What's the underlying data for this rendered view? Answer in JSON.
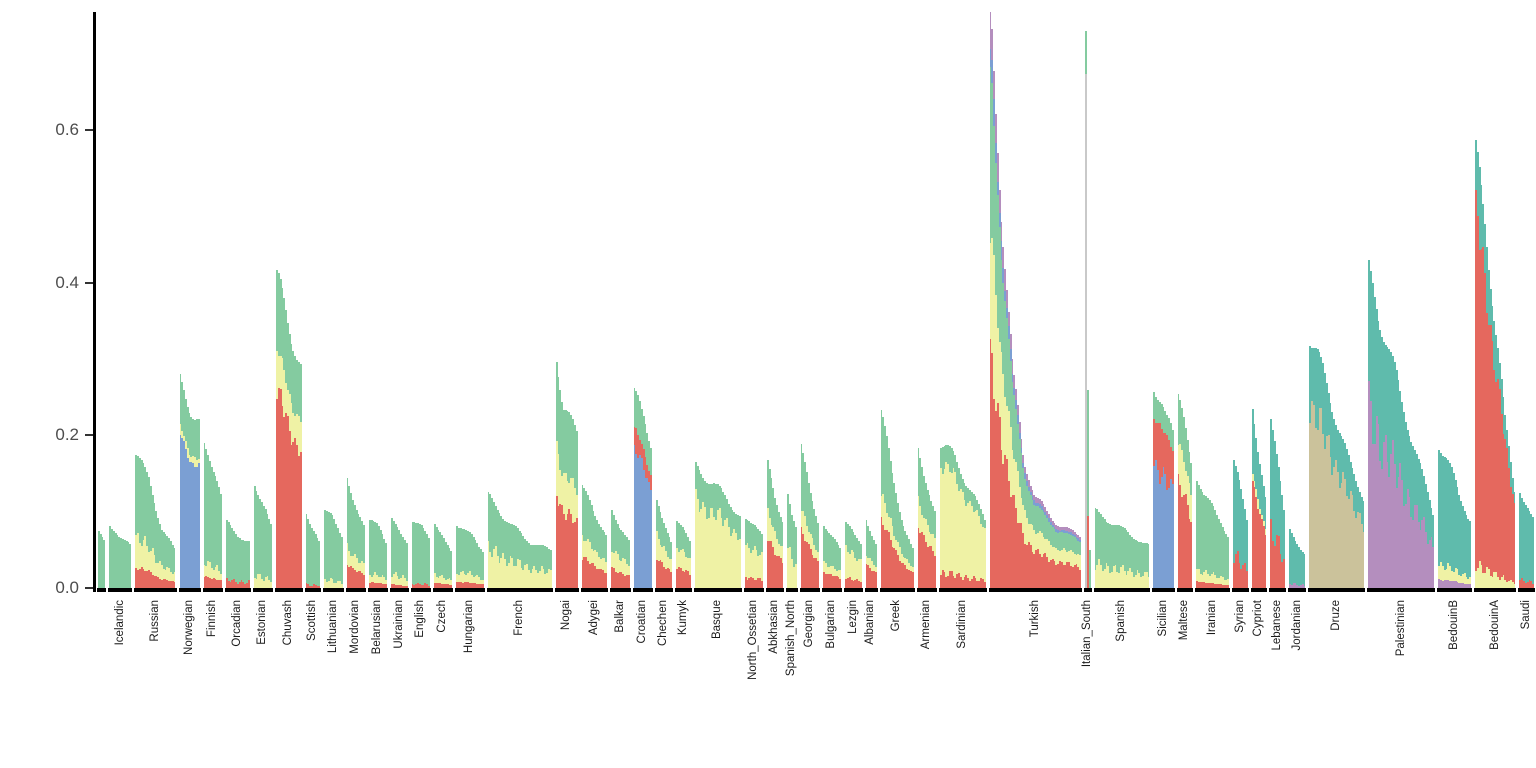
{
  "figure": {
    "background": "#FFFFFF",
    "axis_color": "#000000",
    "tick_label_color": "#4D4D4D",
    "population_label_color": "#1A1A1A"
  },
  "chart_data": {
    "type": "bar",
    "subtype": "stacked-admixture",
    "title": "",
    "xlabel": "",
    "ylabel": "",
    "grid": false,
    "legend": false,
    "ylim": [
      0,
      0.755
    ],
    "yticks": [
      "0.0",
      "0.2",
      "0.4",
      "0.6"
    ],
    "ytick_values": [
      0.0,
      0.2,
      0.4,
      0.6
    ],
    "palette": {
      "green": "#84CBA0",
      "teal": "#5FBBAC",
      "yellow": "#EFF2A5",
      "red": "#E5685E",
      "blue": "#7B9FD3",
      "gray": "#C9C9C9",
      "purple": "#B48EBE",
      "tan": "#CBC29B"
    },
    "populations": [
      {
        "label": "",
        "n": 4,
        "totals": [
          0.075,
          0.06
        ],
        "layers": [
          [
            "green",
            1
          ]
        ]
      },
      {
        "label": "Icelandic",
        "n": 12,
        "totals": [
          0.08,
          0.07,
          0.055
        ],
        "layers": [
          [
            "green",
            1
          ]
        ]
      },
      {
        "label": "Russian",
        "n": 22,
        "totals": [
          0.18,
          0.14,
          0.08,
          0.05
        ],
        "layers": [
          [
            "red",
            0.15
          ],
          [
            "yellow",
            0.22
          ],
          [
            "green",
            0.63
          ]
        ]
      },
      {
        "label": "Norwegian",
        "n": 11,
        "totals": [
          0.27,
          0.24,
          0.22
        ],
        "layers": [
          [
            "blue",
            0.73
          ],
          [
            "yellow",
            0.04
          ],
          [
            "green",
            0.23
          ]
        ]
      },
      {
        "label": "Finnish",
        "n": 10,
        "totals": [
          0.2,
          0.15,
          0.12
        ],
        "layers": [
          [
            "red",
            0.08
          ],
          [
            "yellow",
            0.1
          ],
          [
            "green",
            0.82
          ]
        ]
      },
      {
        "label": "Orcadian",
        "n": 13,
        "totals": [
          0.085,
          0.07,
          0.06
        ],
        "layers": [
          [
            "red",
            0.12
          ],
          [
            "green",
            0.88
          ]
        ]
      },
      {
        "label": "Estonian",
        "n": 10,
        "totals": [
          0.14,
          0.11,
          0.08
        ],
        "layers": [
          [
            "yellow",
            0.12
          ],
          [
            "green",
            0.88
          ]
        ]
      },
      {
        "label": "Chuvash",
        "n": 14,
        "totals": [
          0.4,
          0.37,
          0.33,
          0.29
        ],
        "layers": [
          [
            "red",
            0.62
          ],
          [
            "yellow",
            0.13
          ],
          [
            "green",
            0.25
          ]
        ]
      },
      {
        "label": "Scottish",
        "n": 8,
        "totals": [
          0.1,
          0.08,
          0.06
        ],
        "layers": [
          [
            "red",
            0.05
          ],
          [
            "green",
            0.95
          ]
        ]
      },
      {
        "label": "Lithuanian",
        "n": 10,
        "totals": [
          0.1,
          0.09,
          0.07
        ],
        "layers": [
          [
            "yellow",
            0.1
          ],
          [
            "green",
            0.9
          ]
        ]
      },
      {
        "label": "Mordovian",
        "n": 10,
        "totals": [
          0.145,
          0.11,
          0.08
        ],
        "layers": [
          [
            "red",
            0.22
          ],
          [
            "yellow",
            0.15
          ],
          [
            "green",
            0.63
          ]
        ]
      },
      {
        "label": "Belarusian",
        "n": 10,
        "totals": [
          0.09,
          0.08,
          0.06
        ],
        "layers": [
          [
            "red",
            0.08
          ],
          [
            "yellow",
            0.12
          ],
          [
            "green",
            0.8
          ]
        ]
      },
      {
        "label": "Ukrainian",
        "n": 9,
        "totals": [
          0.09,
          0.08,
          0.06
        ],
        "layers": [
          [
            "red",
            0.05
          ],
          [
            "yellow",
            0.15
          ],
          [
            "green",
            0.8
          ]
        ]
      },
      {
        "label": "English",
        "n": 10,
        "totals": [
          0.09,
          0.08,
          0.065
        ],
        "layers": [
          [
            "red",
            0.06
          ],
          [
            "green",
            0.94
          ]
        ]
      },
      {
        "label": "Czech",
        "n": 10,
        "totals": [
          0.08,
          0.07,
          0.05
        ],
        "layers": [
          [
            "red",
            0.08
          ],
          [
            "yellow",
            0.12
          ],
          [
            "green",
            0.8
          ]
        ]
      },
      {
        "label": "Hungarian",
        "n": 15,
        "totals": [
          0.085,
          0.07,
          0.05
        ],
        "layers": [
          [
            "red",
            0.1
          ],
          [
            "yellow",
            0.15
          ],
          [
            "green",
            0.75
          ]
        ]
      },
      {
        "label": "French",
        "n": 35,
        "totals": [
          0.12,
          0.085,
          0.06,
          0.05
        ],
        "layers": [
          [
            "yellow",
            0.42
          ],
          [
            "green",
            0.58
          ]
        ]
      },
      {
        "label": "Nogai",
        "n": 12,
        "totals": [
          0.31,
          0.24,
          0.22,
          0.2
        ],
        "layers": [
          [
            "red",
            0.42
          ],
          [
            "yellow",
            0.2
          ],
          [
            "green",
            0.38
          ]
        ]
      },
      {
        "label": "Adygei",
        "n": 14,
        "totals": [
          0.13,
          0.1,
          0.07
        ],
        "layers": [
          [
            "red",
            0.3
          ],
          [
            "yellow",
            0.2
          ],
          [
            "green",
            0.5
          ]
        ]
      },
      {
        "label": "Balkar",
        "n": 10,
        "totals": [
          0.105,
          0.08,
          0.06
        ],
        "layers": [
          [
            "red",
            0.25
          ],
          [
            "yellow",
            0.25
          ],
          [
            "green",
            0.5
          ]
        ]
      },
      {
        "label": "Croatian",
        "n": 10,
        "totals": [
          0.26,
          0.22,
          0.19
        ],
        "layers": [
          [
            "blue",
            0.7
          ],
          [
            "red",
            0.1
          ],
          [
            "green",
            0.2
          ]
        ]
      },
      {
        "label": "Chechen",
        "n": 9,
        "totals": [
          0.115,
          0.09,
          0.06
        ],
        "layers": [
          [
            "red",
            0.35
          ],
          [
            "yellow",
            0.25
          ],
          [
            "green",
            0.4
          ]
        ]
      },
      {
        "label": "Kumyk",
        "n": 8,
        "totals": [
          0.09,
          0.075,
          0.06
        ],
        "layers": [
          [
            "red",
            0.3
          ],
          [
            "yellow",
            0.3
          ],
          [
            "green",
            0.4
          ]
        ]
      },
      {
        "label": "Basque",
        "n": 25,
        "totals": [
          0.16,
          0.14,
          0.12,
          0.095
        ],
        "layers": [
          [
            "yellow",
            0.72
          ],
          [
            "green",
            0.28
          ]
        ]
      },
      {
        "label": "North_Ossetian",
        "n": 10,
        "totals": [
          0.095,
          0.08,
          0.07
        ],
        "layers": [
          [
            "red",
            0.15
          ],
          [
            "yellow",
            0.45
          ],
          [
            "green",
            0.4
          ]
        ]
      },
      {
        "label": "Abkhasian",
        "n": 9,
        "totals": [
          0.16,
          0.12,
          0.09
        ],
        "layers": [
          [
            "red",
            0.4
          ],
          [
            "yellow",
            0.2
          ],
          [
            "green",
            0.4
          ]
        ]
      },
      {
        "label": "Spanish_North",
        "n": 5,
        "totals": [
          0.13,
          0.1,
          0.08
        ],
        "layers": [
          [
            "yellow",
            0.4
          ],
          [
            "green",
            0.6
          ]
        ]
      },
      {
        "label": "Georgian",
        "n": 10,
        "totals": [
          0.18,
          0.13,
          0.09
        ],
        "layers": [
          [
            "red",
            0.4
          ],
          [
            "yellow",
            0.15
          ],
          [
            "green",
            0.45
          ]
        ]
      },
      {
        "label": "Bulgarian",
        "n": 10,
        "totals": [
          0.085,
          0.07,
          0.05
        ],
        "layers": [
          [
            "red",
            0.25
          ],
          [
            "yellow",
            0.15
          ],
          [
            "green",
            0.6
          ]
        ]
      },
      {
        "label": "Lezgin",
        "n": 9,
        "totals": [
          0.085,
          0.07,
          0.06
        ],
        "layers": [
          [
            "red",
            0.15
          ],
          [
            "yellow",
            0.45
          ],
          [
            "green",
            0.4
          ]
        ]
      },
      {
        "label": "Albanian",
        "n": 6,
        "totals": [
          0.09,
          0.075,
          0.06
        ],
        "layers": [
          [
            "red",
            0.35
          ],
          [
            "yellow",
            0.15
          ],
          [
            "green",
            0.5
          ]
        ]
      },
      {
        "label": "Greek",
        "n": 18,
        "totals": [
          0.235,
          0.15,
          0.09,
          0.05
        ],
        "layers": [
          [
            "red",
            0.38
          ],
          [
            "yellow",
            0.14
          ],
          [
            "green",
            0.48
          ]
        ]
      },
      {
        "label": "Armenian",
        "n": 10,
        "totals": [
          0.18,
          0.14,
          0.1
        ],
        "layers": [
          [
            "red",
            0.45
          ],
          [
            "yellow",
            0.18
          ],
          [
            "green",
            0.37
          ]
        ]
      },
      {
        "label": "Sardinian",
        "n": 25,
        "totals": [
          0.19,
          0.17,
          0.13,
          0.09
        ],
        "layers": [
          [
            "red",
            0.1
          ],
          [
            "yellow",
            0.75
          ],
          [
            "green",
            0.15
          ]
        ]
      },
      {
        "label": "Turkish",
        "n": 50,
        "totals": [
          0.755,
          0.5,
          0.28,
          0.17,
          0.12,
          0.1,
          0.085,
          0.075,
          0.07
        ],
        "layers": [
          [
            "red",
            0.4
          ],
          [
            "yellow",
            0.22
          ],
          [
            "green",
            0.28
          ],
          [
            "blue",
            0.04
          ],
          [
            "purple",
            0.06
          ]
        ]
      },
      {
        "label": "Italian_South",
        "n": 3,
        "totals": [
          0.73,
          0.26,
          0.05
        ],
        "bars": [
          {
            "total": 0.73,
            "layers": [
              [
                "gray",
                0.92
              ],
              [
                "green",
                0.08
              ]
            ]
          },
          {
            "total": 0.26,
            "layers": [
              [
                "red",
                0.45
              ],
              [
                "green",
                0.55
              ]
            ]
          },
          {
            "total": 0.05,
            "layers": [
              [
                "green",
                1
              ]
            ]
          }
        ]
      },
      {
        "label": "Spanish",
        "n": 30,
        "totals": [
          0.1,
          0.085,
          0.07,
          0.055
        ],
        "layers": [
          [
            "yellow",
            0.3
          ],
          [
            "green",
            0.7
          ]
        ]
      },
      {
        "label": "Sicilian",
        "n": 11,
        "totals": [
          0.27,
          0.25,
          0.22,
          0.2
        ],
        "layers": [
          [
            "blue",
            0.62
          ],
          [
            "red",
            0.25
          ],
          [
            "green",
            0.13
          ]
        ]
      },
      {
        "label": "Maltese",
        "n": 8,
        "totals": [
          0.245,
          0.21,
          0.17
        ],
        "layers": [
          [
            "red",
            0.55
          ],
          [
            "yellow",
            0.2
          ],
          [
            "green",
            0.25
          ]
        ]
      },
      {
        "label": "Iranian",
        "n": 18,
        "totals": [
          0.145,
          0.12,
          0.09,
          0.07
        ],
        "layers": [
          [
            "red",
            0.06
          ],
          [
            "yellow",
            0.1
          ],
          [
            "green",
            0.84
          ]
        ]
      },
      {
        "label": "Syrian",
        "n": 8,
        "totals": [
          0.165,
          0.13,
          0.09
        ],
        "layers": [
          [
            "red",
            0.25
          ],
          [
            "teal",
            0.75
          ]
        ]
      },
      {
        "label": "Cypriot",
        "n": 8,
        "totals": [
          0.235,
          0.18,
          0.12
        ],
        "layers": [
          [
            "red",
            0.6
          ],
          [
            "yellow",
            0.05
          ],
          [
            "teal",
            0.35
          ]
        ]
      },
      {
        "label": "Lebanese",
        "n": 8,
        "totals": [
          0.225,
          0.16,
          0.1
        ],
        "layers": [
          [
            "red",
            0.35
          ],
          [
            "teal",
            0.65
          ]
        ]
      },
      {
        "label": "Jordanian",
        "n": 9,
        "totals": [
          0.075,
          0.06,
          0.045
        ],
        "layers": [
          [
            "purple",
            0.08
          ],
          [
            "teal",
            0.92
          ]
        ]
      },
      {
        "label": "Druze",
        "n": 30,
        "totals": [
          0.33,
          0.28,
          0.22,
          0.16,
          0.12
        ],
        "layers": [
          [
            "tan",
            0.72
          ],
          [
            "teal",
            0.28
          ]
        ]
      },
      {
        "label": "Palestinian",
        "n": 36,
        "totals": [
          0.41,
          0.33,
          0.25,
          0.17,
          0.1
        ],
        "layers": [
          [
            "purple",
            0.55
          ],
          [
            "teal",
            0.45
          ]
        ]
      },
      {
        "label": "BedouinB",
        "n": 18,
        "totals": [
          0.19,
          0.16,
          0.12,
          0.09
        ],
        "layers": [
          [
            "purple",
            0.06
          ],
          [
            "yellow",
            0.1
          ],
          [
            "teal",
            0.84
          ]
        ]
      },
      {
        "label": "BedouinA",
        "n": 22,
        "totals": [
          0.56,
          0.48,
          0.35,
          0.22,
          0.13
        ],
        "layers": [
          [
            "yellow",
            0.05
          ],
          [
            "red",
            0.8
          ],
          [
            "teal",
            0.15
          ]
        ]
      },
      {
        "label": "Saudi",
        "n": 8,
        "totals": [
          0.13,
          0.11,
          0.09
        ],
        "layers": [
          [
            "red",
            0.08
          ],
          [
            "teal",
            0.92
          ]
        ]
      }
    ]
  }
}
